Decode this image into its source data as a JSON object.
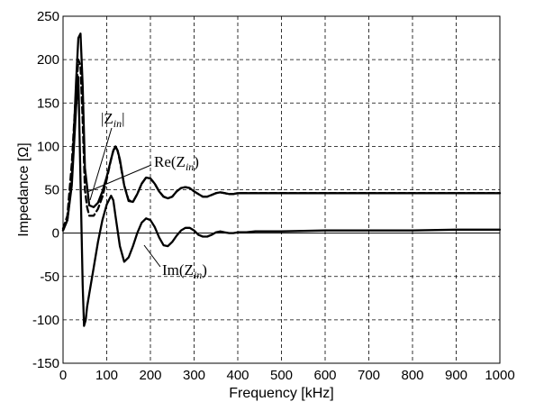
{
  "chart_data": {
    "type": "line",
    "title": "",
    "xlabel": "Frequency [kHz]",
    "ylabel": "Impedance [Ω]",
    "xlim": [
      0,
      1000
    ],
    "ylim": [
      -150,
      250
    ],
    "x_ticks": [
      0,
      100,
      200,
      300,
      400,
      500,
      600,
      700,
      800,
      900,
      1000
    ],
    "y_ticks": [
      -150,
      -100,
      -50,
      0,
      50,
      100,
      150,
      200,
      250
    ],
    "grid": true,
    "series": [
      {
        "name": "|Zin|",
        "style": "dashed",
        "x": [
          0,
          10,
          20,
          28,
          35,
          40,
          45,
          50,
          55,
          60,
          70,
          80,
          90,
          100,
          110,
          115,
          120,
          125,
          130,
          140,
          150,
          160,
          170,
          180,
          190,
          200,
          210,
          220,
          230,
          240,
          250,
          260,
          270,
          280,
          290,
          300,
          310,
          320,
          330,
          340,
          350,
          360,
          370,
          380,
          390,
          400,
          420,
          440,
          460,
          500,
          600,
          700,
          800,
          900,
          1000
        ],
        "y": [
          5,
          20,
          80,
          150,
          200,
          192,
          130,
          50,
          30,
          20,
          20,
          28,
          42,
          62,
          85,
          95,
          100,
          95,
          83,
          55,
          38,
          36,
          45,
          57,
          64,
          63,
          57,
          48,
          42,
          40,
          42,
          48,
          52,
          53,
          52,
          48,
          45,
          42,
          42,
          44,
          46,
          47,
          46,
          45,
          45,
          46,
          46,
          46,
          46,
          46,
          46,
          46,
          46,
          46,
          46
        ]
      },
      {
        "name": "Re(Zin)",
        "style": "solid",
        "x": [
          0,
          10,
          20,
          30,
          35,
          40,
          45,
          50,
          60,
          70,
          80,
          90,
          100,
          110,
          115,
          120,
          125,
          130,
          140,
          150,
          160,
          170,
          180,
          190,
          200,
          210,
          220,
          230,
          240,
          250,
          260,
          270,
          280,
          290,
          300,
          310,
          320,
          330,
          340,
          350,
          360,
          370,
          380,
          390,
          400,
          420,
          440,
          460,
          500,
          600,
          700,
          800,
          900,
          1000
        ],
        "y": [
          3,
          15,
          60,
          175,
          225,
          230,
          170,
          75,
          32,
          30,
          35,
          48,
          65,
          85,
          95,
          100,
          95,
          85,
          55,
          37,
          36,
          45,
          57,
          64,
          63,
          57,
          48,
          42,
          40,
          42,
          48,
          52,
          53,
          52,
          48,
          45,
          42,
          42,
          44,
          46,
          47,
          46,
          45,
          45,
          46,
          46,
          46,
          46,
          46,
          46,
          46,
          46,
          46,
          46
        ]
      },
      {
        "name": "Im(Zin)",
        "style": "solid",
        "x": [
          0,
          10,
          20,
          30,
          35,
          40,
          45,
          48,
          52,
          55,
          60,
          70,
          80,
          90,
          100,
          110,
          115,
          120,
          130,
          140,
          150,
          160,
          170,
          180,
          190,
          200,
          210,
          220,
          230,
          240,
          250,
          260,
          270,
          280,
          290,
          300,
          310,
          320,
          330,
          340,
          350,
          360,
          370,
          380,
          390,
          400,
          420,
          440,
          460,
          500,
          600,
          700,
          800,
          900,
          1000
        ],
        "y": [
          3,
          15,
          55,
          145,
          180,
          60,
          -60,
          -107,
          -100,
          -85,
          -70,
          -40,
          -10,
          15,
          33,
          43,
          38,
          20,
          -15,
          -33,
          -28,
          -15,
          0,
          12,
          17,
          15,
          7,
          -5,
          -14,
          -15,
          -10,
          -3,
          3,
          6,
          6,
          3,
          -2,
          -4,
          -4,
          -2,
          1,
          2,
          1,
          0,
          0,
          1,
          1,
          2,
          2,
          2,
          3,
          3,
          3,
          4,
          4
        ]
      }
    ],
    "annotations": [
      {
        "main": "|Z",
        "sub": "in",
        "suffix": "|"
      },
      {
        "main": "Re(Z",
        "sub": "in",
        "suffix": ")"
      },
      {
        "main": "Im(Z",
        "sub": "in",
        "suffix": ")"
      }
    ]
  }
}
